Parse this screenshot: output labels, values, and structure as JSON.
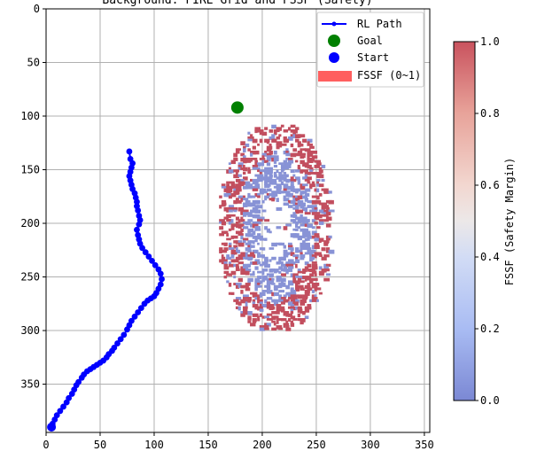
{
  "chart_data": [
    {
      "type": "scatter",
      "title": "Background: FIRE Grid and FSSF (Safety)",
      "xlabel": "",
      "ylabel": "",
      "xlim": [
        0,
        355
      ],
      "ylim": [
        395,
        0
      ],
      "xticks": [
        0,
        50,
        100,
        150,
        200,
        250,
        300,
        350
      ],
      "yticks": [
        0,
        50,
        100,
        150,
        200,
        250,
        300,
        350
      ],
      "grid": true,
      "legend_position": "top-right",
      "legend": [
        "RL Path",
        "Goal",
        "Start",
        "FSSF (0~1)"
      ],
      "series": [
        {
          "name": "RL Path",
          "color": "#0000ff",
          "x": [
            5,
            6,
            8,
            10,
            13,
            16,
            19,
            21,
            24,
            26,
            28,
            30,
            33,
            35,
            38,
            41,
            44,
            47,
            50,
            53,
            56,
            58,
            61,
            63,
            66,
            69,
            72,
            75,
            77,
            79,
            82,
            85,
            88,
            91,
            94,
            97,
            100,
            102,
            104,
            106,
            107,
            106,
            104,
            101,
            98,
            95,
            92,
            89,
            87,
            86,
            85,
            84,
            86,
            87,
            86,
            85,
            84,
            84,
            83,
            82,
            80,
            79,
            78,
            77,
            78,
            79,
            80,
            78,
            77
          ],
          "y": [
            390,
            387,
            383,
            379,
            375,
            371,
            367,
            363,
            359,
            355,
            351,
            348,
            344,
            341,
            338,
            336,
            334,
            332,
            330,
            328,
            325,
            322,
            319,
            316,
            312,
            308,
            304,
            299,
            295,
            291,
            287,
            283,
            279,
            275,
            272,
            270,
            268,
            265,
            261,
            257,
            252,
            247,
            243,
            239,
            235,
            231,
            227,
            223,
            219,
            215,
            211,
            206,
            201,
            197,
            193,
            188,
            184,
            180,
            176,
            172,
            168,
            164,
            160,
            156,
            152,
            148,
            144,
            140,
            133
          ]
        },
        {
          "name": "Goal",
          "color": "#008000",
          "x": [
            177
          ],
          "y": [
            92
          ]
        },
        {
          "name": "Start",
          "color": "#0000ff",
          "x": [
            5
          ],
          "y": [
            390
          ]
        }
      ],
      "fssf_region": {
        "name": "FSSF (0~1)",
        "x_range": [
          160,
          262
        ],
        "y_range": [
          108,
          298
        ],
        "high_value_color": "#c24e5e",
        "low_value_color": "#8893d6"
      }
    },
    {
      "type": "heatmap",
      "colorbar_label": "FSSF (Safety Margin)",
      "range": [
        0.0,
        1.0
      ],
      "ticks": [
        0.0,
        0.2,
        0.4,
        0.6,
        0.8,
        1.0
      ],
      "tick_labels": [
        "0.0",
        "0.2",
        "0.4",
        "0.6",
        "0.8",
        "1.0"
      ],
      "colormap": "coolwarm"
    }
  ]
}
